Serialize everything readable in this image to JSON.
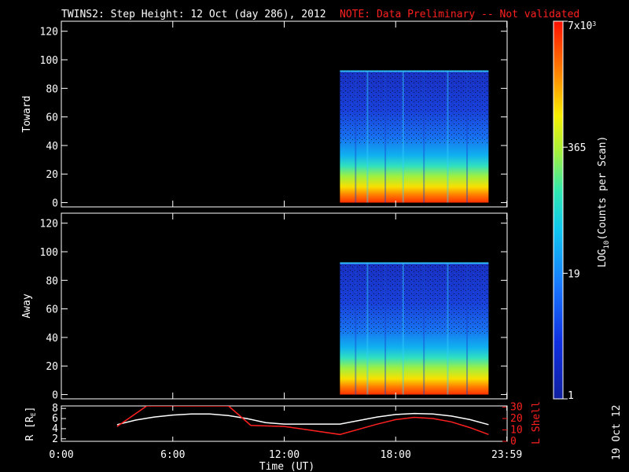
{
  "header": {
    "title": "TWINS2: Step Height: 12 Oct (day 286), 2012",
    "note": "NOTE: Data Preliminary -- Not validated"
  },
  "colorbar": {
    "label": "LOG10(Counts per Scan)",
    "label_base": "LOG",
    "label_sub": "10",
    "label_rest": "(Counts per Scan)",
    "ticks": [
      "1",
      "19",
      "365",
      "7x10^3"
    ],
    "tick_values": [
      1,
      19,
      365,
      7000
    ],
    "top_label_main": "7x10",
    "top_label_sup": "3"
  },
  "side_date": "19 Oct 12",
  "chart_data": [
    {
      "type": "heatmap",
      "ylabel": "Toward",
      "yticks": [
        0,
        20,
        40,
        60,
        80,
        100,
        120
      ],
      "ylim": [
        -3,
        127
      ],
      "data_x_range_hours": [
        15.0,
        23.0
      ],
      "data_y_range": [
        0,
        92
      ],
      "count_scale": "log",
      "count_range": [
        1,
        7000
      ]
    },
    {
      "type": "heatmap",
      "ylabel": "Away",
      "yticks": [
        0,
        20,
        40,
        60,
        80,
        100,
        120
      ],
      "ylim": [
        -3,
        127
      ],
      "data_x_range_hours": [
        15.0,
        23.0
      ],
      "data_y_range": [
        0,
        92
      ],
      "count_scale": "log",
      "count_range": [
        1,
        7000
      ]
    },
    {
      "type": "line",
      "ylabel_left": "R [RE]",
      "ylabel_left_base": "R [R",
      "ylabel_left_sub": "E",
      "ylabel_left_end": "]",
      "ylabel_right": "L Shell",
      "yticks_left": [
        2,
        4,
        6,
        8
      ],
      "yticks_right": [
        0,
        10,
        20,
        30
      ],
      "ylim_left": [
        1.5,
        8.5
      ],
      "ylim_right": [
        0,
        31
      ],
      "series": [
        {
          "axis": "left",
          "color": "#ffffff",
          "x": [
            3.0,
            4.0,
            5.0,
            6.0,
            7.0,
            8.0,
            9.0,
            10.0,
            11.0,
            12.0,
            13.0,
            14.0,
            15.0,
            16.0,
            17.0,
            18.0,
            19.0,
            20.0,
            21.0,
            22.0,
            23.0
          ],
          "y": [
            4.8,
            5.7,
            6.3,
            6.7,
            6.9,
            6.9,
            6.6,
            6.0,
            5.2,
            4.9,
            4.9,
            4.9,
            4.9,
            5.6,
            6.3,
            6.8,
            7.0,
            6.9,
            6.5,
            5.8,
            4.8
          ]
        },
        {
          "axis": "right",
          "color": "#ff2020",
          "x": [
            3.0,
            4.6,
            9.0,
            10.2,
            12.0,
            15.0,
            17.0,
            18.0,
            19.0,
            20.0,
            21.0,
            22.0,
            23.0
          ],
          "y": [
            13,
            31,
            31,
            14,
            13,
            6,
            15,
            19,
            21,
            20,
            17,
            12,
            6
          ]
        }
      ]
    }
  ],
  "xaxis": {
    "label": "Time (UT)",
    "ticks": [
      "0:00",
      "6:00",
      "12:00",
      "18:00",
      "23:59"
    ],
    "tick_hours": [
      0,
      6,
      12,
      18,
      23.983
    ]
  }
}
